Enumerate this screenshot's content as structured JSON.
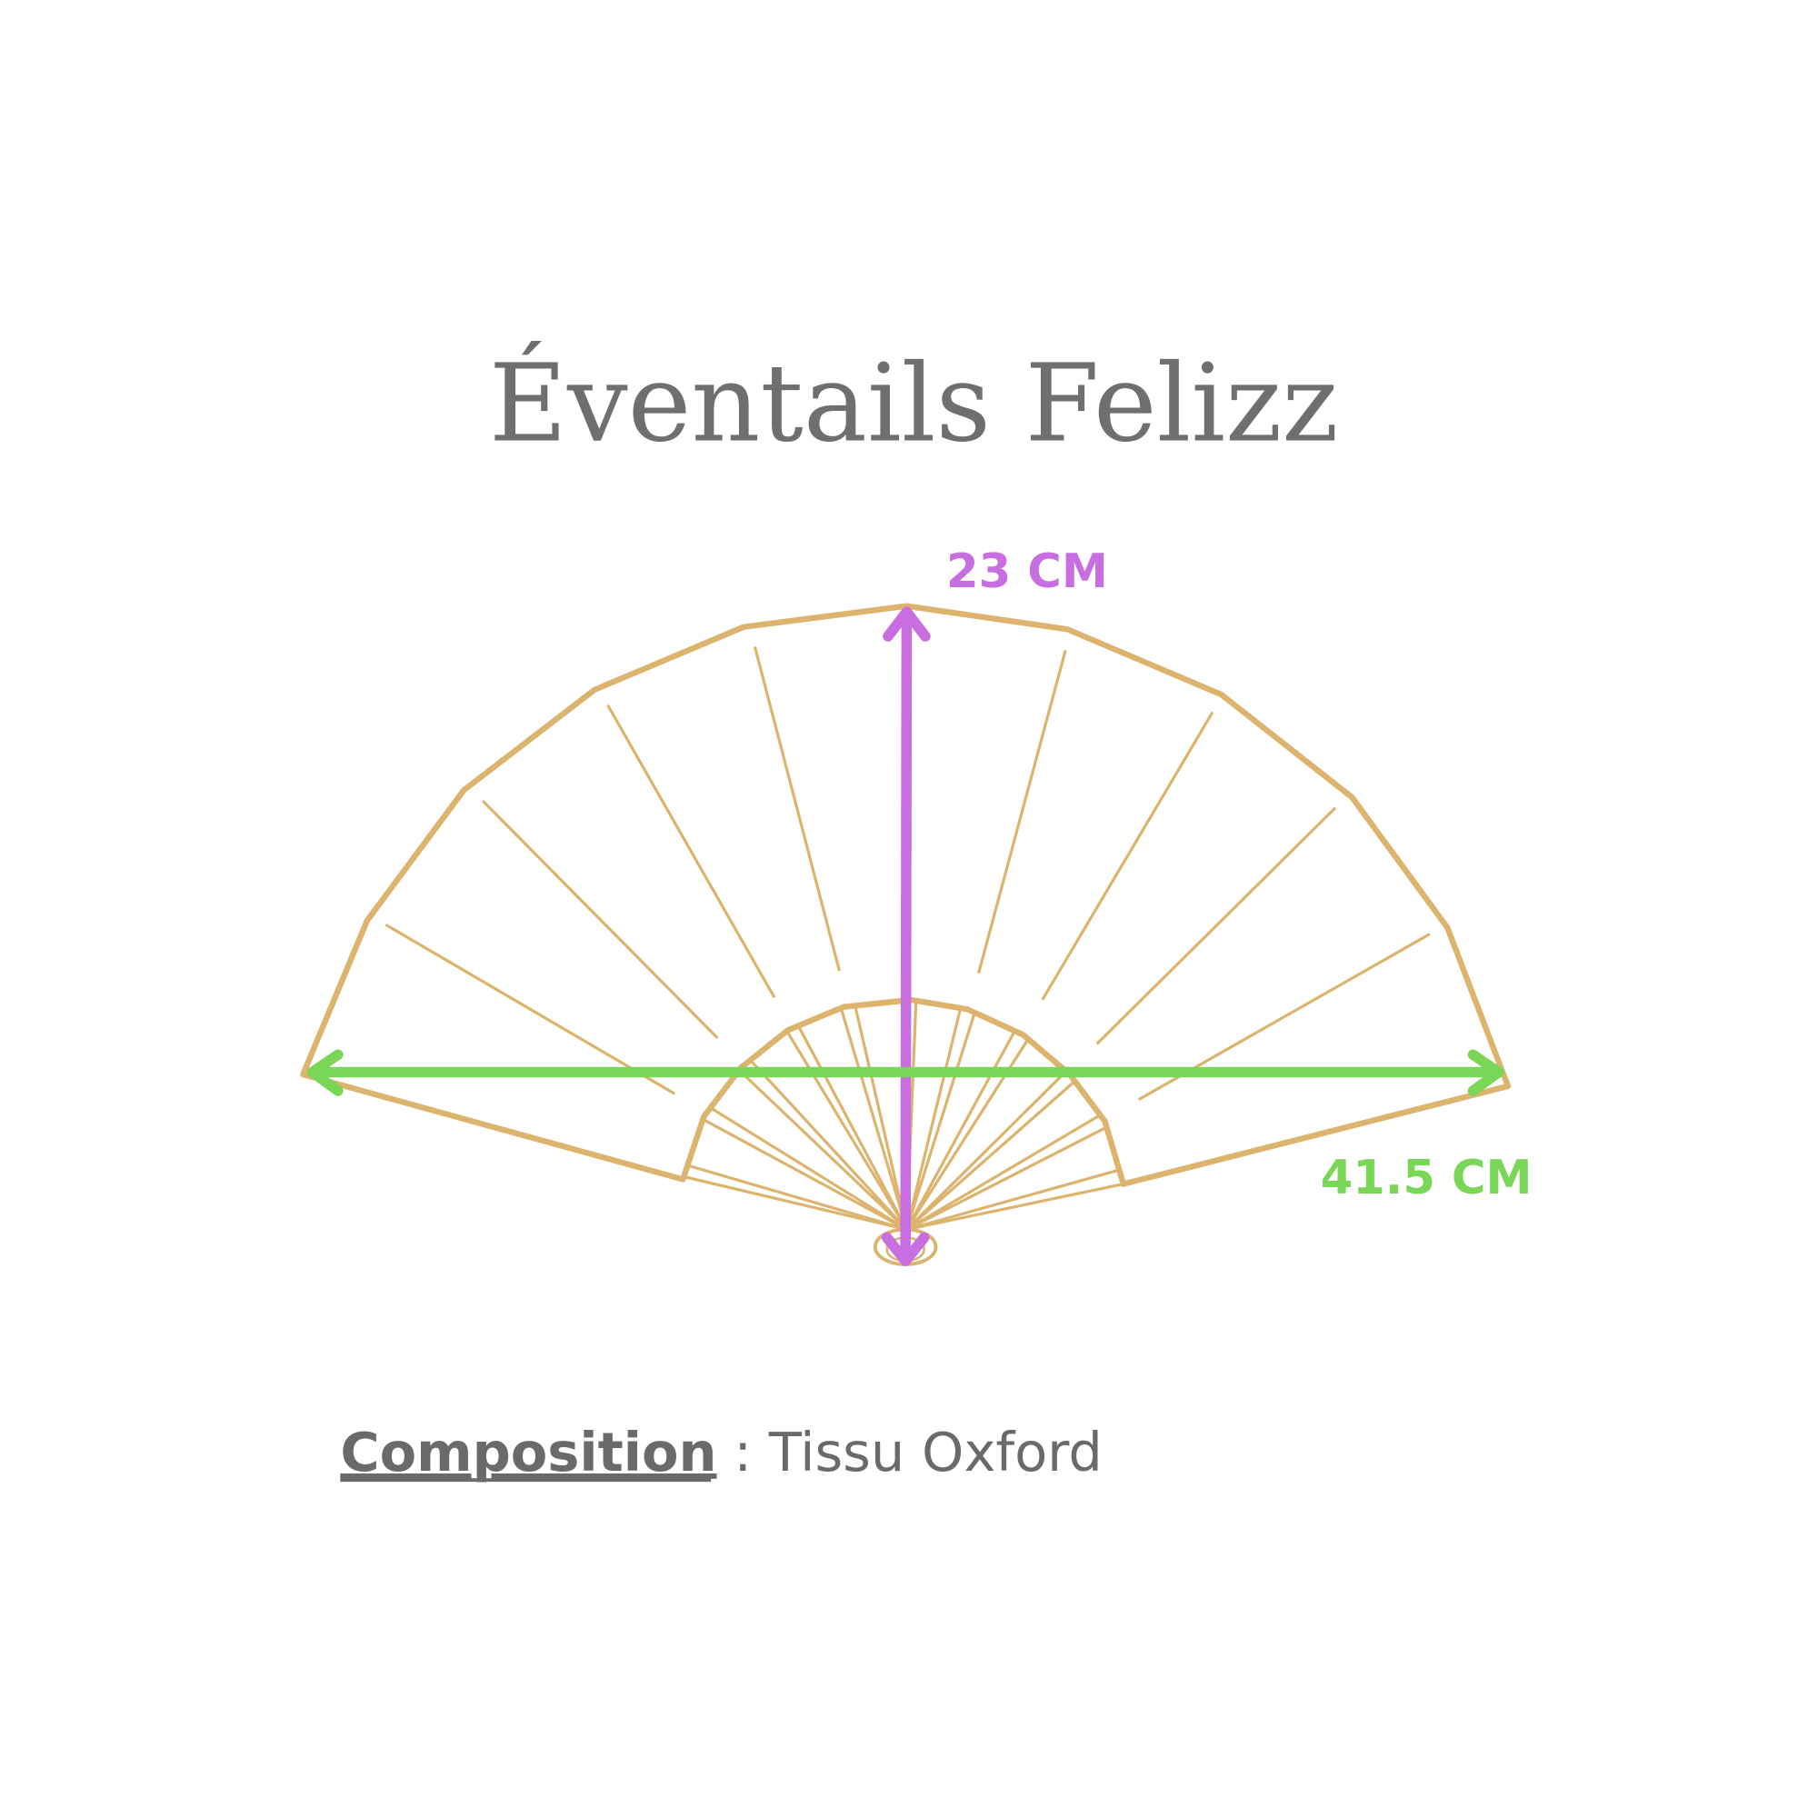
{
  "title": "Éventails Felizz",
  "dimensions": {
    "height_label": "23 CM",
    "width_label": "41.5 CM"
  },
  "composition": {
    "label": "Composition",
    "separator": " : ",
    "value": "Tissu Oxford"
  },
  "colors": {
    "fan": "#dcb46e",
    "height_arrow": "#c86ee0",
    "width_arrow": "#7ad657",
    "text": "#6f6f6f"
  },
  "icons": [
    "folding-fan-illustration",
    "double-arrow-vertical",
    "double-arrow-horizontal"
  ]
}
